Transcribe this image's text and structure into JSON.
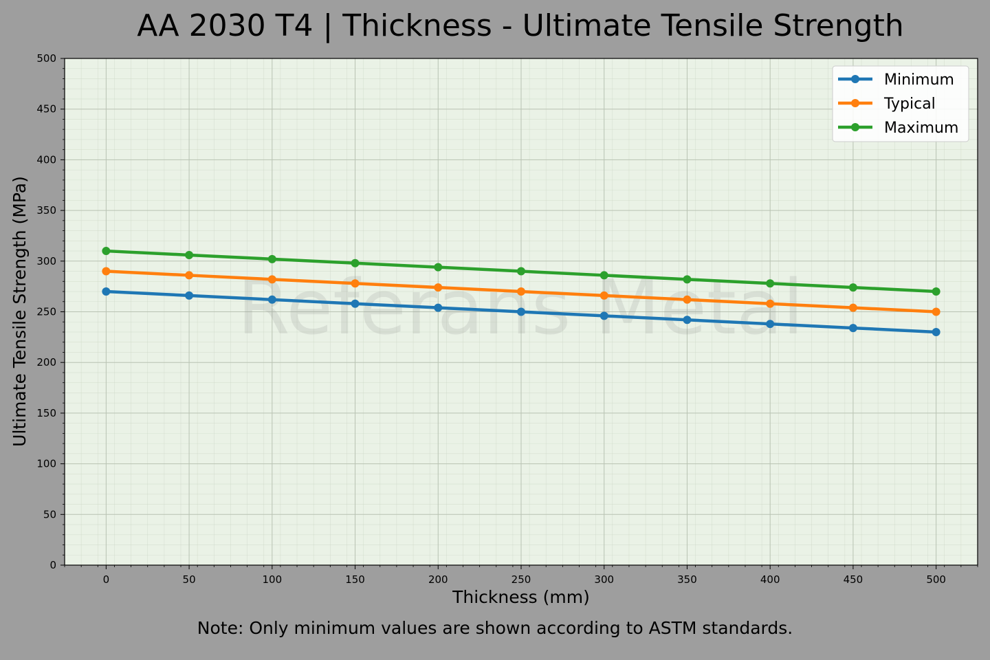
{
  "chart_data": {
    "type": "line",
    "title": "AA 2030 T4 | Thickness - Ultimate Tensile Strength",
    "xlabel": "Thickness (mm)",
    "ylabel": "Ultimate Tensile Strength (MPa)",
    "x": [
      0,
      50,
      100,
      150,
      200,
      250,
      300,
      350,
      400,
      450,
      500
    ],
    "xticks": [
      0,
      50,
      100,
      150,
      200,
      250,
      300,
      350,
      400,
      450,
      500
    ],
    "yticks": [
      0,
      50,
      100,
      150,
      200,
      250,
      300,
      350,
      400,
      450,
      500
    ],
    "xlim": [
      -25,
      525
    ],
    "ylim": [
      0,
      500
    ],
    "grid": true,
    "legend_position": "top-right",
    "series": [
      {
        "name": "Minimum",
        "color": "#1f77b4",
        "values": [
          270,
          266,
          262,
          258,
          254,
          250,
          246,
          242,
          238,
          234,
          230
        ]
      },
      {
        "name": "Typical",
        "color": "#ff7f0e",
        "values": [
          290,
          286,
          282,
          278,
          274,
          270,
          266,
          262,
          258,
          254,
          250
        ]
      },
      {
        "name": "Maximum",
        "color": "#2ca02c",
        "values": [
          310,
          306,
          302,
          298,
          294,
          290,
          286,
          282,
          278,
          274,
          270
        ]
      }
    ],
    "watermark": "Referans Metal",
    "note": "Note: Only minimum values are shown according to ASTM standards."
  },
  "colors": {
    "figure_background": "#9e9e9e",
    "plot_background": "#eaf2e6"
  }
}
